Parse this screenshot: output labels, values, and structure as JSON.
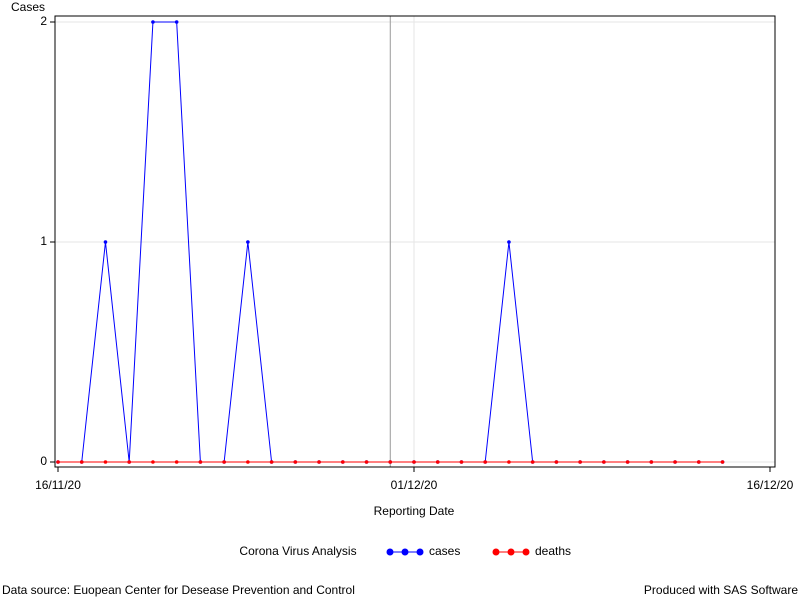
{
  "chart_data": {
    "type": "line",
    "y_label": "Cases",
    "x_label": "Reporting Date",
    "legend_title": "Corona Virus Analysis",
    "x": [
      "16/11/20",
      "17/11/20",
      "18/11/20",
      "19/11/20",
      "20/11/20",
      "21/11/20",
      "22/11/20",
      "23/11/20",
      "24/11/20",
      "25/11/20",
      "26/11/20",
      "27/11/20",
      "28/11/20",
      "29/11/20",
      "30/11/20",
      "01/12/20",
      "02/12/20",
      "03/12/20",
      "04/12/20",
      "05/12/20",
      "06/12/20",
      "07/12/20",
      "08/12/20",
      "09/12/20",
      "10/12/20",
      "11/12/20",
      "12/12/20",
      "13/12/20",
      "14/12/20"
    ],
    "series": [
      {
        "name": "cases",
        "color": "#0000ff",
        "values": [
          0,
          0,
          1,
          0,
          2,
          2,
          0,
          0,
          1,
          0,
          0,
          0,
          0,
          0,
          0,
          0,
          0,
          0,
          0,
          1,
          0,
          0,
          0,
          0,
          0,
          0,
          0,
          0,
          0
        ]
      },
      {
        "name": "deaths",
        "color": "#ff0000",
        "values": [
          0,
          0,
          0,
          0,
          0,
          0,
          0,
          0,
          0,
          0,
          0,
          0,
          0,
          0,
          0,
          0,
          0,
          0,
          0,
          0,
          0,
          0,
          0,
          0,
          0,
          0,
          0,
          0,
          0
        ]
      }
    ],
    "xlim": [
      "16/11/20",
      "16/12/20"
    ],
    "xticks": [
      "16/11/20",
      "01/12/20",
      "16/12/20"
    ],
    "ylim": [
      0,
      2
    ],
    "yticks": [
      0,
      1,
      2
    ],
    "grid": true,
    "reference_line_x": "30/11/20",
    "footnote_left": "Data source: Euopean Center for Desease Prevention and Control",
    "footnote_right": "Produced with SAS Software"
  }
}
